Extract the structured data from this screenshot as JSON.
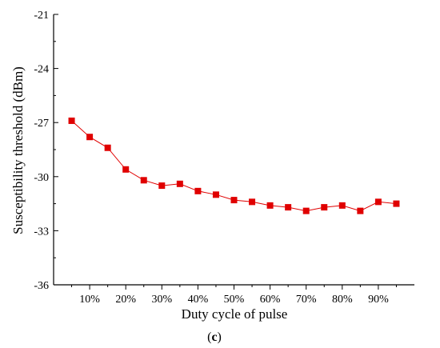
{
  "chart_data": {
    "type": "line",
    "title": "",
    "xlabel": "Duty cycle of pulse",
    "ylabel": "Susceptibility threshold  (dBm)",
    "caption": {
      "open": "(",
      "letter": "c",
      "close": ")"
    },
    "x_tick_labels": [
      "10%",
      "20%",
      "30%",
      "40%",
      "50%",
      "60%",
      "70%",
      "80%",
      "90%"
    ],
    "x_tick_values": [
      10,
      20,
      30,
      40,
      50,
      60,
      70,
      80,
      90
    ],
    "xlim": [
      0,
      100
    ],
    "y_tick_labels": [
      "-21",
      "-24",
      "-27",
      "-30",
      "-33",
      "-36"
    ],
    "y_tick_values": [
      -21,
      -24,
      -27,
      -30,
      -33,
      -36
    ],
    "ylim": [
      -36,
      -21
    ],
    "grid": false,
    "marker": "square",
    "colors": {
      "series": "#e00000",
      "axis": "#000000"
    },
    "series": [
      {
        "x": [
          5,
          10,
          15,
          20,
          25,
          30,
          35,
          40,
          45,
          50,
          55,
          60,
          65,
          70,
          75,
          80,
          85,
          90,
          95
        ],
        "y": [
          -26.9,
          -27.8,
          -28.4,
          -29.6,
          -30.2,
          -30.5,
          -30.4,
          -30.8,
          -31.0,
          -31.3,
          -31.4,
          -31.6,
          -31.7,
          -31.9,
          -31.7,
          -31.6,
          -31.9,
          -31.4,
          -31.5
        ]
      }
    ]
  }
}
